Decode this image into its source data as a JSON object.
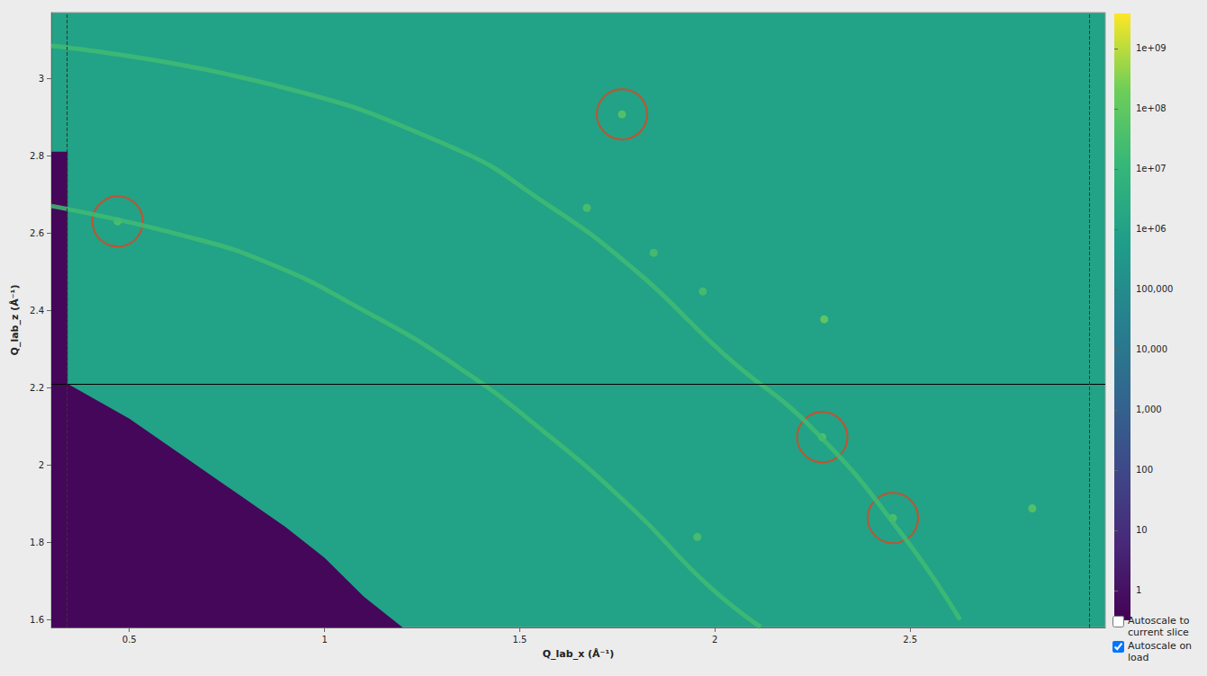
{
  "chart_data": {
    "type": "heatmap",
    "xlabel": "Q_lab_x (Å⁻¹)",
    "ylabel": "Q_lab_z (Å⁻¹)",
    "xlim": [
      0.3,
      3.0
    ],
    "ylim": [
      1.58,
      3.17
    ],
    "xticks": [
      0.5,
      1,
      1.5,
      2,
      2.5
    ],
    "yticks": [
      1.6,
      1.8,
      2,
      2.2,
      2.4,
      2.6,
      2.8,
      3
    ],
    "grid": false,
    "colorbar": {
      "range": [
        0.32,
        3800000000
      ],
      "ticks": [
        1,
        10,
        100,
        {
          "value": 1000,
          "label": "1,000"
        },
        {
          "value": 10000,
          "label": "10,000"
        },
        {
          "value": 100000,
          "label": "100,000"
        },
        {
          "value": 1000000,
          "label": "1e+06"
        },
        {
          "value": 10000000,
          "label": "1e+07"
        },
        {
          "value": 100000000,
          "label": "1e+08"
        },
        {
          "value": 1000000000,
          "label": "1e+09"
        }
      ]
    },
    "background_intensity": 1000000,
    "empty_region": {
      "intensity": 0.5,
      "x": [
        0.3,
        0.342,
        0.342,
        0.5,
        0.7,
        0.9,
        1.0,
        1.1,
        1.2,
        0.3
      ],
      "y": [
        2.81,
        2.81,
        2.21,
        2.12,
        1.98,
        1.84,
        1.76,
        1.66,
        1.58,
        1.58
      ]
    },
    "rings": [
      {
        "intensity": 20000000,
        "x": [
          0.3,
          0.864,
          1.328,
          1.56,
          1.792,
          2.024,
          2.256,
          2.488,
          2.628
        ],
        "y": [
          3.084,
          2.984,
          2.821,
          2.681,
          2.507,
          2.286,
          2.088,
          1.809,
          1.6
        ]
      },
      {
        "intensity": 20000000,
        "x": [
          0.3,
          0.632,
          0.864,
          1.096,
          1.328,
          1.56,
          1.792,
          1.978,
          2.117
        ],
        "y": [
          2.67,
          2.595,
          2.519,
          2.402,
          2.263,
          2.088,
          1.884,
          1.693,
          1.581
        ]
      }
    ],
    "spots": {
      "x": [
        1.762,
        0.47,
        2.275,
        2.456,
        2.28,
        2.813,
        1.672,
        1.843,
        1.969,
        1.955
      ],
      "y": [
        2.907,
        2.63,
        2.072,
        1.863,
        2.377,
        1.888,
        2.665,
        2.549,
        2.449,
        1.814
      ],
      "intensity": [
        100000000,
        60000000,
        80000000,
        60000000,
        200000000,
        100000000,
        50000000,
        40000000,
        40000000,
        50000000
      ]
    },
    "circled": {
      "color": "#e8401c",
      "x": [
        1.762,
        0.47,
        2.275,
        2.456
      ],
      "y": [
        2.907,
        2.63,
        2.072,
        1.863
      ]
    },
    "hline": {
      "y": 2.212,
      "color": "#000000"
    },
    "vlines": {
      "x": [
        0.342,
        2.964
      ],
      "color": "#333333",
      "line_style": "dashed"
    },
    "controls": [
      {
        "label": "Autoscale to current slice",
        "checked": false
      },
      {
        "label": "Autoscale on load",
        "checked": true
      }
    ]
  }
}
